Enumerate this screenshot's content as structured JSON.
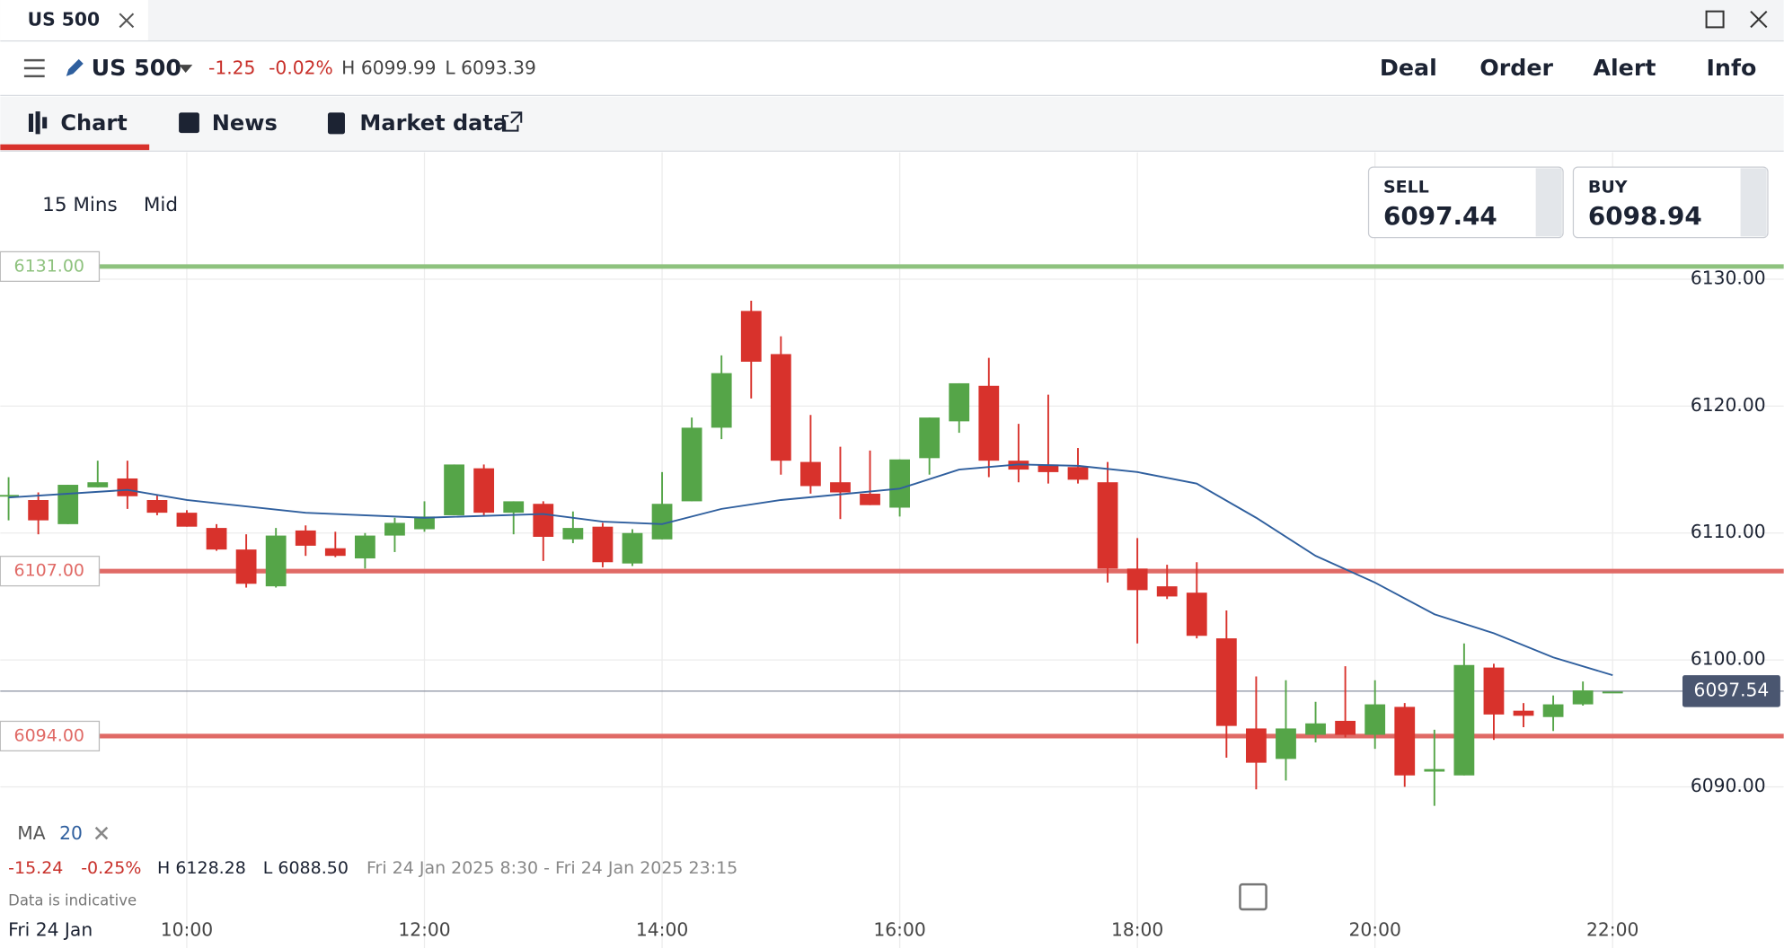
{
  "tab": {
    "title": "US 500"
  },
  "header": {
    "instrument": "US 500",
    "change": "-1.25",
    "change_pct": "-0.02%",
    "high": "H 6099.99",
    "low": "L 6093.39",
    "actions": [
      "Deal",
      "Order",
      "Alert",
      "Info"
    ]
  },
  "nav": {
    "tabs": [
      "Chart",
      "News",
      "Market data"
    ]
  },
  "controls": {
    "interval": "15 Mins",
    "price_type": "Mid"
  },
  "quotes": {
    "sell_label": "SELL",
    "sell": "6097.44",
    "buy_label": "BUY",
    "buy": "6098.94"
  },
  "chart_data": {
    "type": "candlestick",
    "x": [
      8.5,
      8.75,
      9,
      9.25,
      9.5,
      9.75,
      10,
      10.25,
      10.5,
      10.75,
      11,
      11.25,
      11.5,
      11.75,
      12,
      12.25,
      12.5,
      12.75,
      13,
      13.25,
      13.5,
      13.75,
      14,
      14.25,
      14.5,
      14.75,
      15,
      15.25,
      15.5,
      15.75,
      16,
      16.25,
      16.5,
      16.75,
      17,
      17.25,
      17.5,
      17.75,
      18,
      18.25,
      18.5,
      18.75,
      19,
      19.25,
      19.5,
      19.75,
      20,
      20.25,
      20.5,
      20.75,
      21,
      21.25,
      21.5,
      21.75,
      22
    ],
    "open": [
      6113,
      6112.6,
      6110.7,
      6113.6,
      6114.3,
      6112.6,
      6111.6,
      6110.4,
      6108.7,
      6105.8,
      6110.2,
      6108.8,
      6108.0,
      6109.8,
      6110.3,
      6111.4,
      6115.1,
      6111.6,
      6112.3,
      6109.5,
      6110.5,
      6107.6,
      6109.5,
      6112.5,
      6118.3,
      6127.5,
      6124.1,
      6115.6,
      6114.0,
      6113.1,
      6112.0,
      6115.9,
      6118.8,
      6121.6,
      6115.7,
      6115.4,
      6115.2,
      6114.0,
      6107.2,
      6105.8,
      6105.3,
      6101.7,
      6094.6,
      6092.2,
      6094.1,
      6095.2,
      6094.1,
      6096.3,
      6091.2,
      6090.9,
      6099.4,
      6096.0,
      6095.5,
      6096.5,
      6097.5
    ],
    "high": [
      6114.4,
      6113.2,
      6113.8,
      6115.7,
      6115.7,
      6113.0,
      6111.8,
      6110.7,
      6109.9,
      6110.4,
      6110.6,
      6110.1,
      6110.0,
      6111.2,
      6112.5,
      6115.4,
      6115.4,
      6112.5,
      6112.5,
      6111.7,
      6110.8,
      6110.3,
      6114.8,
      6119.1,
      6124.0,
      6128.3,
      6125.5,
      6119.3,
      6116.8,
      6116.5,
      6115.8,
      6119.1,
      6121.8,
      6123.8,
      6118.6,
      6120.9,
      6116.7,
      6115.6,
      6109.6,
      6107.5,
      6107.7,
      6103.9,
      6098.7,
      6098.4,
      6096.7,
      6099.5,
      6098.4,
      6096.6,
      6094.5,
      6101.3,
      6099.7,
      6096.6,
      6097.2,
      6098.3,
      6097.5
    ],
    "low": [
      6111,
      6109.9,
      6110.7,
      6113.6,
      6111.9,
      6111.4,
      6110.5,
      6108.6,
      6105.7,
      6105.7,
      6108.2,
      6108.1,
      6107.2,
      6108.5,
      6110.1,
      6111.4,
      6111.3,
      6109.9,
      6107.8,
      6109.2,
      6107.3,
      6107.4,
      6109.5,
      6112.5,
      6117.4,
      6120.6,
      6114.6,
      6113.1,
      6111.1,
      6112.2,
      6111.3,
      6114.6,
      6117.9,
      6114.4,
      6114.0,
      6113.9,
      6113.9,
      6106.1,
      6101.3,
      6104.8,
      6101.7,
      6092.3,
      6089.8,
      6090.5,
      6093.5,
      6093.9,
      6093.0,
      6090.0,
      6088.5,
      6090.9,
      6093.7,
      6094.7,
      6094.4,
      6096.4,
      6097.5
    ],
    "close": [
      6113,
      6111.0,
      6113.8,
      6114.0,
      6112.9,
      6111.6,
      6110.5,
      6108.7,
      6106.0,
      6109.8,
      6109.0,
      6108.2,
      6109.8,
      6110.8,
      6111.3,
      6115.4,
      6111.6,
      6112.5,
      6109.7,
      6110.4,
      6107.7,
      6110.0,
      6112.3,
      6118.3,
      6122.6,
      6123.5,
      6115.7,
      6113.7,
      6113.2,
      6112.2,
      6115.8,
      6119.1,
      6121.8,
      6115.7,
      6115.0,
      6114.8,
      6114.2,
      6107.2,
      6105.5,
      6105.0,
      6101.9,
      6094.8,
      6091.9,
      6094.6,
      6095.0,
      6094.1,
      6096.5,
      6090.9,
      6091.4,
      6099.6,
      6095.7,
      6095.6,
      6096.5,
      6097.6,
      6097.5
    ],
    "up_color": "#55a548",
    "down_color": "#d8322c",
    "xlim": [
      8.43,
      23.44
    ],
    "xticks": [
      {
        "value": 10,
        "label": "10:00"
      },
      {
        "value": 12,
        "label": "12:00"
      },
      {
        "value": 14,
        "label": "14:00"
      },
      {
        "value": 16,
        "label": "16:00"
      },
      {
        "value": 18,
        "label": "18:00"
      },
      {
        "value": 20,
        "label": "20:00"
      },
      {
        "value": 22,
        "label": "22:00"
      }
    ],
    "ylim": [
      6077.3,
      6140.0
    ],
    "yticks": [
      {
        "value": 6090,
        "label": "6090.00"
      },
      {
        "value": 6100,
        "label": "6100.00"
      },
      {
        "value": 6110,
        "label": "6110.00"
      },
      {
        "value": 6120,
        "label": "6120.00"
      },
      {
        "value": 6130,
        "label": "6130.00"
      }
    ],
    "grid": true,
    "levels": [
      {
        "value": 6131,
        "label": "6131.00",
        "color": "#8ec27e"
      },
      {
        "value": 6107,
        "label": "6107.00",
        "color": "#e06a66"
      },
      {
        "value": 6094,
        "label": "6094.00",
        "color": "#e06a66"
      }
    ],
    "current_price": {
      "value": 6097.54,
      "label": "6097.54"
    },
    "indicator": {
      "name": "MA",
      "period": 20,
      "color": "#2f5f9e",
      "x": [
        8.5,
        9.5,
        10,
        11,
        12,
        13,
        13.5,
        14,
        14.5,
        15,
        16,
        16.5,
        17,
        17.5,
        18,
        18.5,
        19,
        19.5,
        20,
        20.5,
        21,
        21.5,
        22
      ],
      "values": [
        6112.8,
        6113.4,
        6112.6,
        6111.6,
        6111.2,
        6111.5,
        6110.9,
        6110.7,
        6111.9,
        6112.6,
        6113.5,
        6115.0,
        6115.4,
        6115.3,
        6114.8,
        6113.9,
        6111.2,
        6108.2,
        6106.1,
        6103.6,
        6102.1,
        6100.2,
        6098.8
      ]
    },
    "summary": {
      "change": "-15.24",
      "change_pct": "-0.25%",
      "high": "H 6128.28",
      "low": "L 6088.50",
      "range": "Fri 24 Jan 2025 8:30 - Fri 24 Jan 2025 23:15"
    }
  },
  "footer": {
    "note": "Data is indicative",
    "date": "Fri 24 Jan"
  }
}
